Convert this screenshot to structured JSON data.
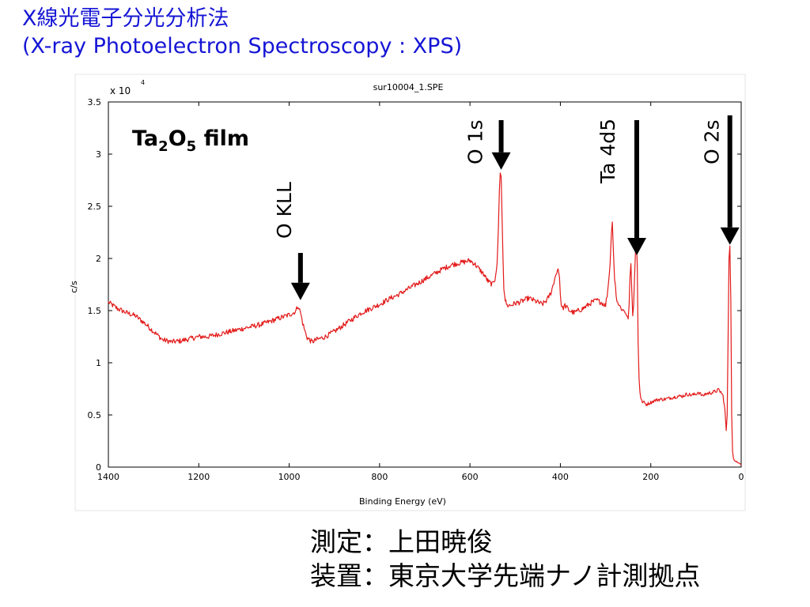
{
  "slide": {
    "title_line1": "X線光電子分光分析法",
    "title_line2": "(X-ray Photoelectron Spectroscopy : XPS)"
  },
  "footer": {
    "line1": "測定：上田暁俊",
    "line2": "装置：東京大学先端ナノ計測拠点"
  },
  "chart_data": {
    "type": "line",
    "title": "sur10004_1.SPE",
    "xlabel": "Binding Energy (eV)",
    "ylabel": "c/s",
    "y_multiplier_label": "x 10",
    "y_multiplier_exponent": "4",
    "sample_label": "Ta₂O₅ film",
    "xlim": [
      1400,
      0
    ],
    "ylim": [
      0,
      3.5
    ],
    "x_ticks": [
      1400,
      1200,
      1000,
      800,
      600,
      400,
      200,
      0
    ],
    "x_tick_labels": [
      "1400",
      "1200",
      "1000",
      "800",
      "600",
      "400",
      "200",
      "0"
    ],
    "y_ticks": [
      0,
      0.5,
      1,
      1.5,
      2,
      2.5,
      3,
      3.5
    ],
    "y_tick_labels": [
      "0",
      "0.5",
      "1",
      "1.5",
      "2",
      "2.5",
      "3",
      "3.5"
    ],
    "line_color": "#e31a1a",
    "arrow_color": "#000000",
    "series": [
      {
        "x": [
          1400,
          1380,
          1360,
          1340,
          1320,
          1300,
          1280,
          1260,
          1240,
          1220,
          1200,
          1180,
          1160,
          1140,
          1120,
          1100,
          1080,
          1060,
          1040,
          1020,
          1000,
          990,
          985,
          980,
          975,
          970,
          965,
          960,
          950,
          940,
          920,
          900,
          880,
          860,
          840,
          820,
          800,
          780,
          760,
          740,
          720,
          700,
          680,
          660,
          640,
          620,
          600,
          590,
          580,
          570,
          560,
          550,
          545,
          540,
          537,
          535,
          533,
          531,
          529,
          527,
          525,
          522,
          518,
          510,
          500,
          490,
          480,
          470,
          460,
          450,
          440,
          430,
          420,
          410,
          405,
          402,
          400,
          398,
          395,
          390,
          380,
          370,
          360,
          350,
          340,
          330,
          320,
          310,
          300,
          295,
          290,
          287,
          285,
          283,
          280,
          275,
          270,
          265,
          260,
          255,
          250,
          248,
          246,
          244,
          242,
          240,
          238,
          236,
          234,
          232,
          230,
          228,
          226,
          224,
          222,
          220,
          215,
          210,
          200,
          190,
          180,
          170,
          160,
          150,
          140,
          130,
          120,
          110,
          100,
          95,
          90,
          85,
          80,
          70,
          60,
          50,
          45,
          40,
          36,
          33,
          31,
          29,
          27,
          25,
          23,
          21,
          19,
          17,
          15,
          10,
          5,
          2,
          0
        ],
        "y": [
          1.58,
          1.52,
          1.48,
          1.45,
          1.38,
          1.3,
          1.22,
          1.2,
          1.21,
          1.23,
          1.25,
          1.25,
          1.27,
          1.29,
          1.31,
          1.33,
          1.35,
          1.37,
          1.4,
          1.43,
          1.46,
          1.48,
          1.5,
          1.55,
          1.48,
          1.38,
          1.3,
          1.24,
          1.2,
          1.22,
          1.25,
          1.3,
          1.36,
          1.42,
          1.48,
          1.52,
          1.56,
          1.61,
          1.65,
          1.7,
          1.75,
          1.8,
          1.85,
          1.9,
          1.94,
          1.96,
          1.98,
          1.95,
          1.9,
          1.85,
          1.78,
          1.75,
          1.8,
          1.95,
          2.3,
          2.65,
          2.82,
          2.78,
          2.4,
          2.0,
          1.7,
          1.6,
          1.55,
          1.55,
          1.57,
          1.58,
          1.6,
          1.62,
          1.6,
          1.58,
          1.56,
          1.6,
          1.68,
          1.85,
          1.9,
          1.82,
          1.65,
          1.55,
          1.52,
          1.55,
          1.5,
          1.48,
          1.5,
          1.52,
          1.55,
          1.58,
          1.6,
          1.58,
          1.55,
          1.7,
          1.95,
          2.25,
          2.35,
          2.1,
          1.8,
          1.6,
          1.55,
          1.52,
          1.5,
          1.48,
          1.42,
          1.55,
          1.82,
          1.95,
          1.7,
          1.45,
          1.55,
          1.8,
          2.05,
          2.18,
          1.95,
          1.2,
          0.85,
          0.72,
          0.66,
          0.63,
          0.62,
          0.6,
          0.62,
          0.64,
          0.65,
          0.65,
          0.66,
          0.67,
          0.68,
          0.68,
          0.7,
          0.69,
          0.7,
          0.72,
          0.7,
          0.68,
          0.7,
          0.71,
          0.72,
          0.74,
          0.72,
          0.68,
          0.55,
          0.35,
          0.5,
          1.2,
          2.0,
          2.12,
          1.6,
          0.5,
          0.15,
          0.08,
          0.06,
          0.05,
          0.04,
          0.03,
          0.02
        ]
      }
    ],
    "annotations": [
      {
        "label": "O KLL",
        "x": 975,
        "y": 1.57
      },
      {
        "label": "O 1s",
        "x": 531,
        "y": 2.82
      },
      {
        "label": "Ta 4d5",
        "x": 231,
        "y": 2.0
      },
      {
        "label": "O 2s",
        "x": 25,
        "y": 2.1
      }
    ]
  }
}
